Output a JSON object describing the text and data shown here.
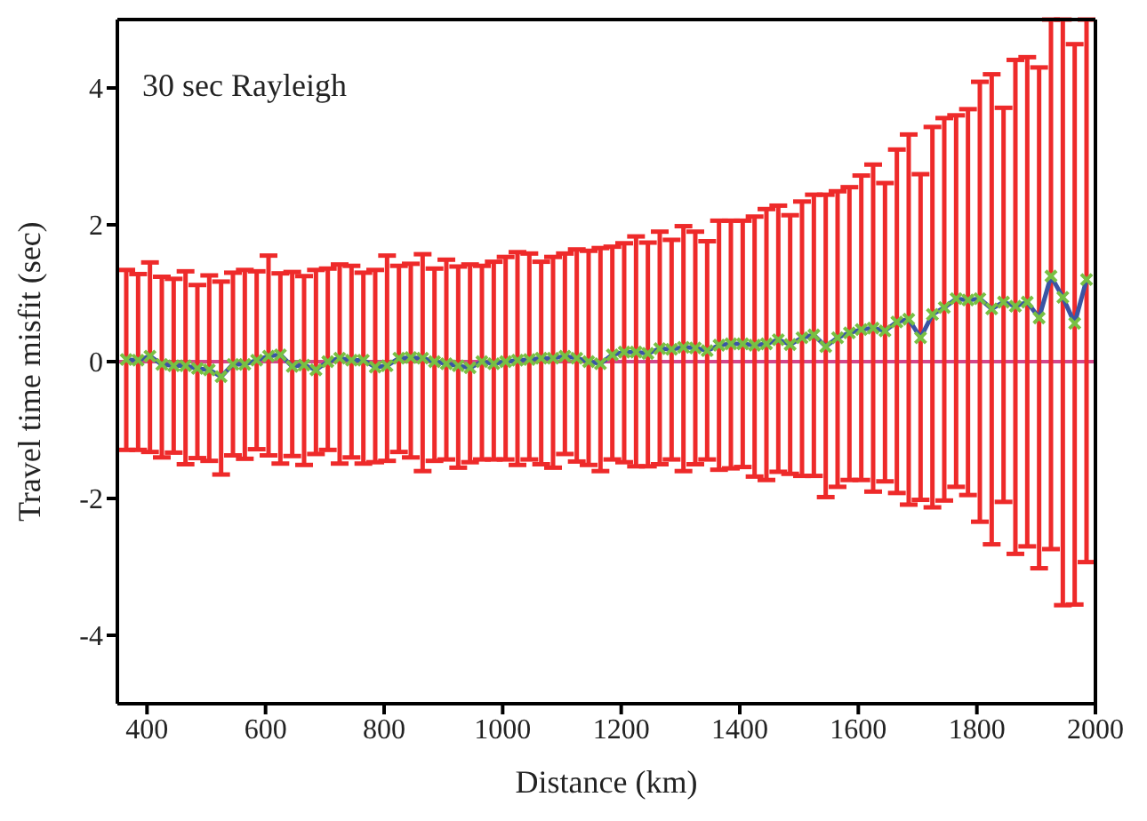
{
  "chart_data": {
    "type": "line",
    "xlabel": "Distance (km)",
    "ylabel": "Travel time misfit (sec)",
    "annotations": [
      "30 sec Rayleigh"
    ],
    "x": [
      365,
      385,
      405,
      425,
      445,
      465,
      485,
      505,
      525,
      545,
      565,
      585,
      605,
      625,
      645,
      665,
      685,
      705,
      725,
      745,
      765,
      785,
      805,
      825,
      845,
      865,
      885,
      905,
      925,
      945,
      965,
      985,
      1005,
      1025,
      1045,
      1065,
      1085,
      1105,
      1125,
      1145,
      1165,
      1185,
      1205,
      1225,
      1245,
      1265,
      1285,
      1305,
      1325,
      1345,
      1365,
      1385,
      1405,
      1425,
      1445,
      1465,
      1485,
      1505,
      1525,
      1545,
      1565,
      1585,
      1605,
      1625,
      1645,
      1665,
      1685,
      1705,
      1725,
      1745,
      1765,
      1785,
      1805,
      1825,
      1845,
      1865,
      1885,
      1905,
      1925,
      1945,
      1965,
      1985
    ],
    "series": [
      {
        "color": "#3a55a4",
        "marker": "none",
        "values": [
          0.03,
          0.02,
          0.08,
          -0.04,
          -0.06,
          -0.06,
          -0.1,
          -0.12,
          -0.22,
          -0.04,
          -0.04,
          0.02,
          0.08,
          0.1,
          -0.07,
          -0.05,
          -0.12,
          0.0,
          0.05,
          0.02,
          0.02,
          -0.08,
          -0.06,
          0.05,
          0.06,
          0.05,
          0.0,
          -0.03,
          -0.06,
          -0.09,
          0.0,
          -0.03,
          0.0,
          0.02,
          0.03,
          0.05,
          0.05,
          0.08,
          0.05,
          0.0,
          -0.03,
          0.1,
          0.14,
          0.14,
          0.12,
          0.19,
          0.18,
          0.21,
          0.2,
          0.16,
          0.24,
          0.26,
          0.26,
          0.24,
          0.26,
          0.32,
          0.25,
          0.35,
          0.39,
          0.22,
          0.35,
          0.42,
          0.47,
          0.49,
          0.45,
          0.58,
          0.62,
          0.35,
          0.69,
          0.79,
          0.92,
          0.9,
          0.92,
          0.77,
          0.87,
          0.81,
          0.87,
          0.64,
          1.25,
          0.94,
          0.56,
          1.2
        ],
        "errors": [
          [
            -1.29,
            1.34
          ],
          [
            -1.29,
            1.28
          ],
          [
            -1.32,
            1.45
          ],
          [
            -1.4,
            1.24
          ],
          [
            -1.33,
            1.21
          ],
          [
            -1.5,
            1.32
          ],
          [
            -1.41,
            1.12
          ],
          [
            -1.45,
            1.26
          ],
          [
            -1.65,
            1.17
          ],
          [
            -1.37,
            1.3
          ],
          [
            -1.42,
            1.34
          ],
          [
            -1.28,
            1.32
          ],
          [
            -1.37,
            1.55
          ],
          [
            -1.49,
            1.29
          ],
          [
            -1.38,
            1.31
          ],
          [
            -1.51,
            1.25
          ],
          [
            -1.35,
            1.34
          ],
          [
            -1.29,
            1.36
          ],
          [
            -1.49,
            1.42
          ],
          [
            -1.4,
            1.4
          ],
          [
            -1.49,
            1.3
          ],
          [
            -1.47,
            1.34
          ],
          [
            -1.45,
            1.55
          ],
          [
            -1.32,
            1.4
          ],
          [
            -1.4,
            1.43
          ],
          [
            -1.6,
            1.57
          ],
          [
            -1.45,
            1.36
          ],
          [
            -1.43,
            1.49
          ],
          [
            -1.55,
            1.39
          ],
          [
            -1.47,
            1.42
          ],
          [
            -1.43,
            1.4
          ],
          [
            -1.43,
            1.46
          ],
          [
            -1.43,
            1.53
          ],
          [
            -1.51,
            1.6
          ],
          [
            -1.43,
            1.58
          ],
          [
            -1.5,
            1.46
          ],
          [
            -1.55,
            1.53
          ],
          [
            -1.35,
            1.58
          ],
          [
            -1.46,
            1.64
          ],
          [
            -1.51,
            1.62
          ],
          [
            -1.6,
            1.66
          ],
          [
            -1.43,
            1.68
          ],
          [
            -1.47,
            1.73
          ],
          [
            -1.53,
            1.83
          ],
          [
            -1.53,
            1.74
          ],
          [
            -1.5,
            1.9
          ],
          [
            -1.43,
            1.78
          ],
          [
            -1.6,
            1.98
          ],
          [
            -1.5,
            1.9
          ],
          [
            -1.43,
            1.76
          ],
          [
            -1.58,
            2.06
          ],
          [
            -1.56,
            2.06
          ],
          [
            -1.54,
            2.06
          ],
          [
            -1.68,
            2.12
          ],
          [
            -1.73,
            2.23
          ],
          [
            -1.61,
            2.28
          ],
          [
            -1.64,
            2.14
          ],
          [
            -1.67,
            2.34
          ],
          [
            -1.67,
            2.44
          ],
          [
            -1.98,
            2.44
          ],
          [
            -1.83,
            2.49
          ],
          [
            -1.73,
            2.55
          ],
          [
            -1.73,
            2.72
          ],
          [
            -1.9,
            2.88
          ],
          [
            -1.75,
            2.61
          ],
          [
            -1.92,
            3.1
          ],
          [
            -2.09,
            3.32
          ],
          [
            -2.02,
            2.74
          ],
          [
            -2.13,
            3.43
          ],
          [
            -2.03,
            3.56
          ],
          [
            -1.83,
            3.6
          ],
          [
            -1.95,
            3.69
          ],
          [
            -2.34,
            4.09
          ],
          [
            -2.67,
            4.2
          ],
          [
            -2.05,
            3.71
          ],
          [
            -2.81,
            4.41
          ],
          [
            -2.7,
            4.45
          ],
          [
            -3.02,
            4.3
          ],
          [
            -2.74,
            5
          ],
          [
            -3.56,
            5
          ],
          [
            -3.55,
            4.64
          ],
          [
            -2.93,
            5
          ]
        ]
      },
      {
        "type": "scatter",
        "color": "#78c043",
        "marker": "cross",
        "values": [
          0.03,
          0.02,
          0.08,
          -0.04,
          -0.06,
          -0.06,
          -0.1,
          -0.12,
          -0.22,
          -0.04,
          -0.04,
          0.02,
          0.08,
          0.1,
          -0.07,
          -0.05,
          -0.12,
          0.0,
          0.05,
          0.02,
          0.02,
          -0.08,
          -0.06,
          0.05,
          0.06,
          0.05,
          0.0,
          -0.03,
          -0.06,
          -0.09,
          0.0,
          -0.03,
          0.0,
          0.02,
          0.03,
          0.05,
          0.05,
          0.08,
          0.05,
          0.0,
          -0.03,
          0.1,
          0.14,
          0.14,
          0.12,
          0.19,
          0.18,
          0.21,
          0.2,
          0.16,
          0.24,
          0.26,
          0.26,
          0.24,
          0.26,
          0.32,
          0.25,
          0.35,
          0.39,
          0.22,
          0.35,
          0.42,
          0.47,
          0.49,
          0.45,
          0.58,
          0.62,
          0.35,
          0.69,
          0.79,
          0.92,
          0.9,
          0.92,
          0.77,
          0.87,
          0.81,
          0.87,
          0.64,
          1.25,
          0.94,
          0.56,
          1.2
        ]
      }
    ],
    "xlim": [
      350,
      2000
    ],
    "xticks": [
      400,
      600,
      800,
      1000,
      1200,
      1400,
      1600,
      1800,
      2000
    ],
    "ylim": [
      -5,
      5
    ],
    "yticks": [
      -4,
      -2,
      0,
      2,
      4
    ],
    "grid": false,
    "legend": false,
    "ref_lines": [
      {
        "axis": "y",
        "value": 0,
        "color": "#d4468a"
      }
    ]
  }
}
